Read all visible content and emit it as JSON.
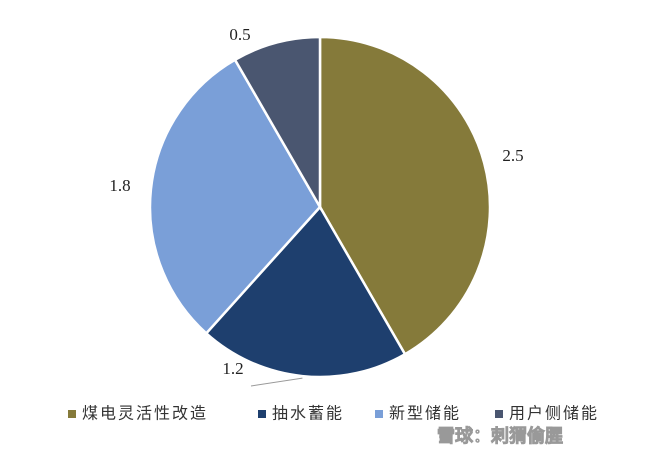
{
  "chart_data": {
    "type": "pie",
    "categories": [
      "煤电灵活性改造",
      "抽水蓄能",
      "新型储能",
      "用户侧储能"
    ],
    "values": [
      2.5,
      1.2,
      1.8,
      0.5
    ],
    "colors": [
      "#857a3a",
      "#1e3f6e",
      "#7a9fd8",
      "#4a5670"
    ],
    "legend": "bottom"
  },
  "watermark": "雪球：刺猬偷腥"
}
